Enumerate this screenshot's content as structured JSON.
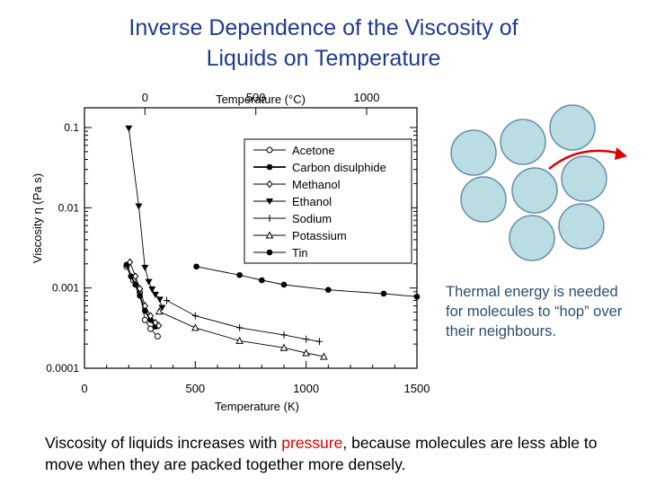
{
  "page": {
    "title_line1": "Inverse Dependence of the Viscosity of",
    "title_line2": "Liquids on Temperature",
    "note": "Thermal energy is needed for molecules to “hop” over their neighbours.",
    "caption_part1": "Viscosity of liquids increases with ",
    "caption_highlight": "pressure",
    "caption_part2": ", because molecules are less able to move when they are packed together more densely.",
    "highlight_color": "#e00000",
    "circle_fill": "#b9dde3",
    "circle_stroke": "#6a8eab",
    "arrow_color": "#e00000"
  },
  "chart_data": {
    "type": "line",
    "scale": "log-y",
    "xlabel": "Temperature (K)",
    "ylabel": "Viscosity η (Pa s)",
    "top_xlabel": "Temperature (°C)",
    "xlim": [
      0,
      1500
    ],
    "ylim": [
      0.0001,
      0.1
    ],
    "x_ticks": [
      0,
      500,
      1000,
      1500
    ],
    "x_tick_labels": [
      "0",
      "500",
      "1000",
      "1500"
    ],
    "y_ticks": [
      0.1,
      0.01,
      0.001,
      0.0001
    ],
    "y_tick_labels": [
      "0.1",
      "0.01",
      "0.001",
      "0.0001"
    ],
    "top_ticks": [
      0,
      500,
      1000
    ],
    "top_tick_labels": [
      "0",
      "500",
      "1000"
    ],
    "legend_position": "top-right",
    "series": [
      {
        "name": "Acetone",
        "marker": "open-circle",
        "points": [
          [
            190,
            0.00185
          ],
          [
            220,
            0.00125
          ],
          [
            250,
            0.00088
          ],
          [
            273,
            0.0004
          ],
          [
            298,
            0.00031
          ],
          [
            330,
            0.00025
          ]
        ]
      },
      {
        "name": "Carbon disulphide",
        "marker": "filled-circle",
        "points": [
          [
            190,
            0.00195
          ],
          [
            210,
            0.0014
          ],
          [
            230,
            0.0011
          ],
          [
            250,
            0.0008
          ],
          [
            273,
            0.00052
          ],
          [
            298,
            0.0004
          ],
          [
            320,
            0.00033
          ]
        ]
      },
      {
        "name": "Methanol",
        "marker": "diamond",
        "points": [
          [
            205,
            0.0021
          ],
          [
            230,
            0.0014
          ],
          [
            250,
            0.00098
          ],
          [
            273,
            0.0006
          ],
          [
            298,
            0.00045
          ],
          [
            320,
            0.00037
          ],
          [
            335,
            0.00034
          ]
        ]
      },
      {
        "name": "Ethanol",
        "marker": "filled-triangle-down",
        "points": [
          [
            200,
            0.098
          ],
          [
            245,
            0.0105
          ],
          [
            273,
            0.0018
          ],
          [
            290,
            0.0012
          ],
          [
            305,
            0.00097
          ],
          [
            320,
            0.00083
          ],
          [
            340,
            0.00072
          ],
          [
            350,
            0.00057
          ]
        ]
      },
      {
        "name": "Sodium",
        "marker": "plus",
        "points": [
          [
            371,
            0.0007
          ],
          [
            500,
            0.00045
          ],
          [
            700,
            0.00032
          ],
          [
            900,
            0.00026
          ],
          [
            1000,
            0.00023
          ],
          [
            1060,
            0.000215
          ]
        ]
      },
      {
        "name": "Potassium",
        "marker": "open-triangle",
        "points": [
          [
            337,
            0.00051
          ],
          [
            500,
            0.00032
          ],
          [
            700,
            0.00022
          ],
          [
            900,
            0.00018
          ],
          [
            1000,
            0.000155
          ],
          [
            1080,
            0.00014
          ]
        ]
      },
      {
        "name": "Tin",
        "marker": "filled-circle",
        "points": [
          [
            505,
            0.00185
          ],
          [
            700,
            0.00145
          ],
          [
            800,
            0.00125
          ],
          [
            900,
            0.0011
          ],
          [
            1100,
            0.00095
          ],
          [
            1350,
            0.00085
          ],
          [
            1500,
            0.00078
          ]
        ]
      }
    ]
  }
}
